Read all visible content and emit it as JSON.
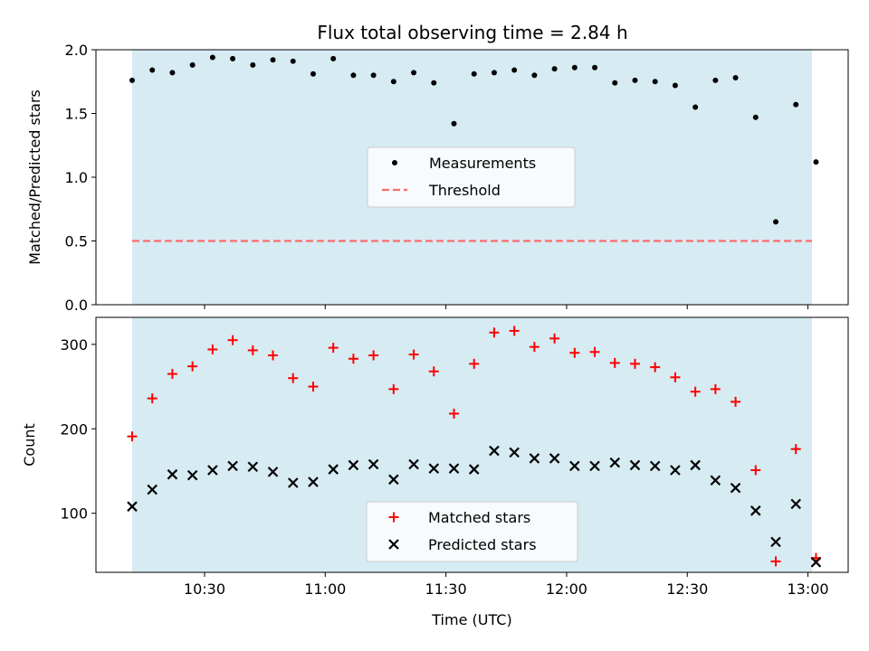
{
  "title": "Flux total observing time = 2.84 h",
  "colors": {
    "shade": "#add8e6",
    "measurement": "#000000",
    "threshold": "#ff6b6b",
    "matched": "#ff0000",
    "predicted": "#000000"
  },
  "chart_data": [
    {
      "type": "scatter",
      "panel": "top",
      "ylabel": "Matched/Predicted stars",
      "ylim": [
        0,
        2.0
      ],
      "yticks": [
        "0.0",
        "0.5",
        "1.0",
        "1.5",
        "2.0"
      ],
      "shaded_range": [
        "10:12",
        "13:01"
      ],
      "threshold": 0.5,
      "legend": {
        "placement": "center",
        "entries": [
          "Measurements",
          "Threshold"
        ]
      },
      "series": [
        {
          "name": "Measurements",
          "x": [
            "10:12",
            "10:17",
            "10:22",
            "10:27",
            "10:32",
            "10:37",
            "10:42",
            "10:47",
            "10:52",
            "10:57",
            "11:02",
            "11:07",
            "11:12",
            "11:17",
            "11:22",
            "11:27",
            "11:32",
            "11:37",
            "11:42",
            "11:47",
            "11:52",
            "11:57",
            "12:02",
            "12:07",
            "12:12",
            "12:17",
            "12:22",
            "12:27",
            "12:32",
            "12:37",
            "12:42",
            "12:47",
            "12:52",
            "12:57",
            "13:02"
          ],
          "values": [
            1.76,
            1.84,
            1.82,
            1.88,
            1.94,
            1.93,
            1.88,
            1.92,
            1.91,
            1.81,
            1.93,
            1.8,
            1.8,
            1.75,
            1.82,
            1.74,
            1.42,
            1.81,
            1.82,
            1.84,
            1.8,
            1.85,
            1.86,
            1.86,
            1.74,
            1.76,
            1.75,
            1.72,
            1.55,
            1.76,
            1.78,
            1.47,
            0.65,
            1.57,
            1.12
          ]
        },
        {
          "name": "Threshold",
          "x": [
            "10:12",
            "13:01"
          ],
          "values": [
            0.5,
            0.5
          ]
        }
      ]
    },
    {
      "type": "scatter",
      "panel": "bottom",
      "xlabel": "Time (UTC)",
      "ylabel": "Count",
      "xlim": [
        "10:03",
        "13:10"
      ],
      "ylim": [
        30,
        332
      ],
      "xticks": [
        "10:30",
        "11:00",
        "11:30",
        "12:00",
        "12:30",
        "13:00"
      ],
      "yticks": [
        "100",
        "200",
        "300"
      ],
      "shaded_range": [
        "10:12",
        "13:01"
      ],
      "legend": {
        "placement": "lower center",
        "entries": [
          "Matched stars",
          "Predicted stars"
        ]
      },
      "series": [
        {
          "name": "Matched stars",
          "x": [
            "10:12",
            "10:17",
            "10:22",
            "10:27",
            "10:32",
            "10:37",
            "10:42",
            "10:47",
            "10:52",
            "10:57",
            "11:02",
            "11:07",
            "11:12",
            "11:17",
            "11:22",
            "11:27",
            "11:32",
            "11:37",
            "11:42",
            "11:47",
            "11:52",
            "11:57",
            "12:02",
            "12:07",
            "12:12",
            "12:17",
            "12:22",
            "12:27",
            "12:32",
            "12:37",
            "12:42",
            "12:47",
            "12:52",
            "12:57",
            "13:02"
          ],
          "values": [
            191,
            236,
            265,
            274,
            294,
            305,
            293,
            287,
            260,
            250,
            296,
            283,
            287,
            247,
            288,
            268,
            218,
            277,
            314,
            316,
            297,
            307,
            290,
            291,
            278,
            277,
            273,
            261,
            244,
            247,
            232,
            151,
            43,
            176,
            47
          ]
        },
        {
          "name": "Predicted stars",
          "x": [
            "10:12",
            "10:17",
            "10:22",
            "10:27",
            "10:32",
            "10:37",
            "10:42",
            "10:47",
            "10:52",
            "10:57",
            "11:02",
            "11:07",
            "11:12",
            "11:17",
            "11:22",
            "11:27",
            "11:32",
            "11:37",
            "11:42",
            "11:47",
            "11:52",
            "11:57",
            "12:02",
            "12:07",
            "12:12",
            "12:17",
            "12:22",
            "12:27",
            "12:32",
            "12:37",
            "12:42",
            "12:47",
            "12:52",
            "12:57",
            "13:02"
          ],
          "values": [
            108,
            128,
            146,
            145,
            151,
            156,
            155,
            149,
            136,
            137,
            152,
            157,
            158,
            140,
            158,
            153,
            153,
            152,
            174,
            172,
            165,
            165,
            156,
            156,
            160,
            157,
            156,
            151,
            157,
            139,
            130,
            103,
            66,
            111,
            42
          ]
        }
      ]
    }
  ]
}
